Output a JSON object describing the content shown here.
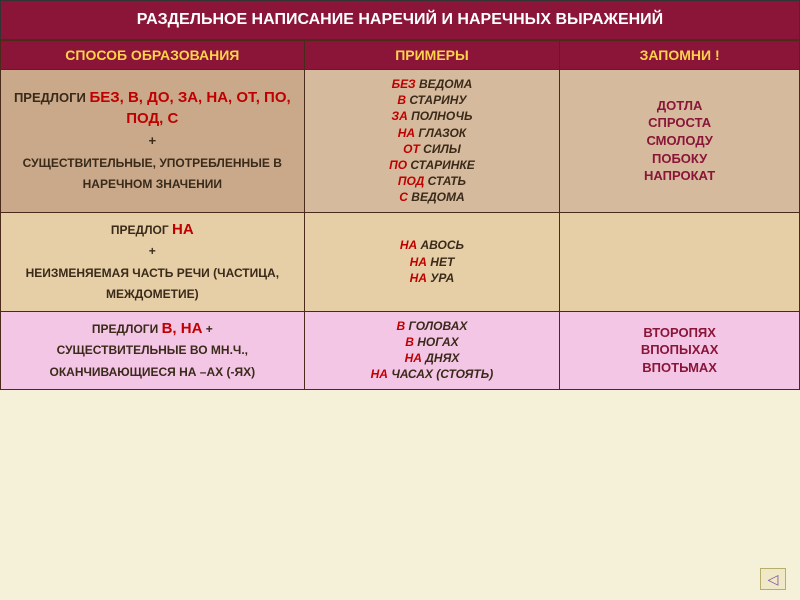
{
  "title": "РАЗДЕЛЬНОЕ НАПИСАНИЕ НАРЕЧИЙ И НАРЕЧНЫХ ВЫРАЖЕНИЙ",
  "headers": {
    "method": "СПОСОБ ОБРАЗОВАНИЯ",
    "examples": "ПРИМЕРЫ",
    "remember": "ЗАПОМНИ !"
  },
  "row1": {
    "method_pre": "ПРЕДЛОГИ ",
    "method_preps": "БЕЗ, В, ДО, ЗА, НА, ОТ, ПО, ПОД, С",
    "method_plus": "+",
    "method_tail": "СУЩЕСТВИТЕЛЬНЫЕ, УПОТРЕБЛЕННЫЕ В НАРЕЧНОМ ЗНАЧЕНИИ",
    "ex": [
      {
        "p": "БЕЗ",
        "w": " ВЕДОМА"
      },
      {
        "p": "В",
        "w": " СТАРИНУ"
      },
      {
        "p": "ЗА",
        "w": " ПОЛНОЧЬ"
      },
      {
        "p": "НА",
        "w": " ГЛАЗОК"
      },
      {
        "p": "ОТ",
        "w": " СИЛЫ"
      },
      {
        "p": "ПО",
        "w": " СТАРИНКЕ"
      },
      {
        "p": "ПОД",
        "w": " СТАТЬ"
      },
      {
        "p": "С",
        "w": " ВЕДОМА"
      }
    ],
    "rem": [
      "ДОТЛА",
      "СПРОСТА",
      "СМОЛОДУ",
      "ПОБОКУ",
      "НАПРОКАТ"
    ]
  },
  "row2": {
    "method_pre": "ПРЕДЛОГ ",
    "method_preps": "НА",
    "method_plus": "+",
    "method_tail": "НЕИЗМЕНЯЕМАЯ ЧАСТЬ РЕЧИ (ЧАСТИЦА, МЕЖДОМЕТИЕ)",
    "ex": [
      {
        "p": "НА",
        "w": " АВОСЬ"
      },
      {
        "p": "НА",
        "w": " НЕТ"
      },
      {
        "p": "НА",
        "w": " УРА"
      }
    ],
    "rem": ""
  },
  "row3": {
    "method_pre": "ПРЕДЛОГИ ",
    "method_preps": "В, НА",
    "method_plus": "  +",
    "method_tail": "СУЩЕСТВИТЕЛЬНЫЕ ВО МН.Ч., ОКАНЧИВАЮЩИЕСЯ НА –АХ (-ЯХ)",
    "ex": [
      {
        "p": "В",
        "w": " ГОЛОВАХ"
      },
      {
        "p": "В",
        "w": " НОГАХ"
      },
      {
        "p": "НА",
        "w": " ДНЯХ"
      },
      {
        "p": "НА",
        "w": " ЧАСАХ",
        "t": " (СТОЯТЬ)"
      }
    ],
    "rem": [
      "ВТОРОПЯХ",
      "ВПОПЫХАХ",
      "ВПОТЬМАХ"
    ]
  },
  "nav": "◁"
}
